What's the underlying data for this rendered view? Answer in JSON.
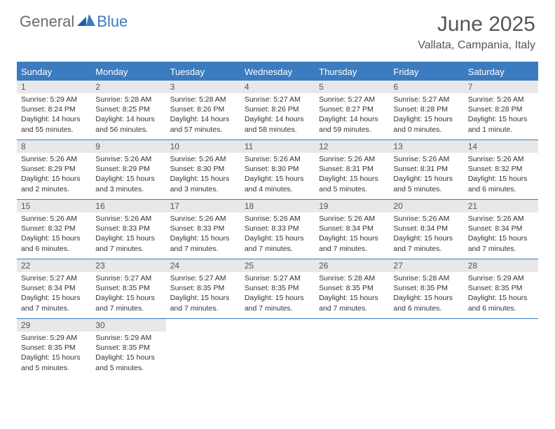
{
  "colors": {
    "accent": "#3b7bbf",
    "header_text": "#ffffff",
    "daynum_bg": "#e8e8e8",
    "text": "#333333",
    "muted": "#555555",
    "background": "#ffffff",
    "logo_gray": "#6b6b6b"
  },
  "logo": {
    "part1": "General",
    "part2": "Blue"
  },
  "title": "June 2025",
  "location": "Vallata, Campania, Italy",
  "day_headers": [
    "Sunday",
    "Monday",
    "Tuesday",
    "Wednesday",
    "Thursday",
    "Friday",
    "Saturday"
  ],
  "weeks": [
    [
      {
        "n": "1",
        "sr": "Sunrise: 5:29 AM",
        "ss": "Sunset: 8:24 PM",
        "dl": "Daylight: 14 hours and 55 minutes."
      },
      {
        "n": "2",
        "sr": "Sunrise: 5:28 AM",
        "ss": "Sunset: 8:25 PM",
        "dl": "Daylight: 14 hours and 56 minutes."
      },
      {
        "n": "3",
        "sr": "Sunrise: 5:28 AM",
        "ss": "Sunset: 8:26 PM",
        "dl": "Daylight: 14 hours and 57 minutes."
      },
      {
        "n": "4",
        "sr": "Sunrise: 5:27 AM",
        "ss": "Sunset: 8:26 PM",
        "dl": "Daylight: 14 hours and 58 minutes."
      },
      {
        "n": "5",
        "sr": "Sunrise: 5:27 AM",
        "ss": "Sunset: 8:27 PM",
        "dl": "Daylight: 14 hours and 59 minutes."
      },
      {
        "n": "6",
        "sr": "Sunrise: 5:27 AM",
        "ss": "Sunset: 8:28 PM",
        "dl": "Daylight: 15 hours and 0 minutes."
      },
      {
        "n": "7",
        "sr": "Sunrise: 5:26 AM",
        "ss": "Sunset: 8:28 PM",
        "dl": "Daylight: 15 hours and 1 minute."
      }
    ],
    [
      {
        "n": "8",
        "sr": "Sunrise: 5:26 AM",
        "ss": "Sunset: 8:29 PM",
        "dl": "Daylight: 15 hours and 2 minutes."
      },
      {
        "n": "9",
        "sr": "Sunrise: 5:26 AM",
        "ss": "Sunset: 8:29 PM",
        "dl": "Daylight: 15 hours and 3 minutes."
      },
      {
        "n": "10",
        "sr": "Sunrise: 5:26 AM",
        "ss": "Sunset: 8:30 PM",
        "dl": "Daylight: 15 hours and 3 minutes."
      },
      {
        "n": "11",
        "sr": "Sunrise: 5:26 AM",
        "ss": "Sunset: 8:30 PM",
        "dl": "Daylight: 15 hours and 4 minutes."
      },
      {
        "n": "12",
        "sr": "Sunrise: 5:26 AM",
        "ss": "Sunset: 8:31 PM",
        "dl": "Daylight: 15 hours and 5 minutes."
      },
      {
        "n": "13",
        "sr": "Sunrise: 5:26 AM",
        "ss": "Sunset: 8:31 PM",
        "dl": "Daylight: 15 hours and 5 minutes."
      },
      {
        "n": "14",
        "sr": "Sunrise: 5:26 AM",
        "ss": "Sunset: 8:32 PM",
        "dl": "Daylight: 15 hours and 6 minutes."
      }
    ],
    [
      {
        "n": "15",
        "sr": "Sunrise: 5:26 AM",
        "ss": "Sunset: 8:32 PM",
        "dl": "Daylight: 15 hours and 6 minutes."
      },
      {
        "n": "16",
        "sr": "Sunrise: 5:26 AM",
        "ss": "Sunset: 8:33 PM",
        "dl": "Daylight: 15 hours and 7 minutes."
      },
      {
        "n": "17",
        "sr": "Sunrise: 5:26 AM",
        "ss": "Sunset: 8:33 PM",
        "dl": "Daylight: 15 hours and 7 minutes."
      },
      {
        "n": "18",
        "sr": "Sunrise: 5:26 AM",
        "ss": "Sunset: 8:33 PM",
        "dl": "Daylight: 15 hours and 7 minutes."
      },
      {
        "n": "19",
        "sr": "Sunrise: 5:26 AM",
        "ss": "Sunset: 8:34 PM",
        "dl": "Daylight: 15 hours and 7 minutes."
      },
      {
        "n": "20",
        "sr": "Sunrise: 5:26 AM",
        "ss": "Sunset: 8:34 PM",
        "dl": "Daylight: 15 hours and 7 minutes."
      },
      {
        "n": "21",
        "sr": "Sunrise: 5:26 AM",
        "ss": "Sunset: 8:34 PM",
        "dl": "Daylight: 15 hours and 7 minutes."
      }
    ],
    [
      {
        "n": "22",
        "sr": "Sunrise: 5:27 AM",
        "ss": "Sunset: 8:34 PM",
        "dl": "Daylight: 15 hours and 7 minutes."
      },
      {
        "n": "23",
        "sr": "Sunrise: 5:27 AM",
        "ss": "Sunset: 8:35 PM",
        "dl": "Daylight: 15 hours and 7 minutes."
      },
      {
        "n": "24",
        "sr": "Sunrise: 5:27 AM",
        "ss": "Sunset: 8:35 PM",
        "dl": "Daylight: 15 hours and 7 minutes."
      },
      {
        "n": "25",
        "sr": "Sunrise: 5:27 AM",
        "ss": "Sunset: 8:35 PM",
        "dl": "Daylight: 15 hours and 7 minutes."
      },
      {
        "n": "26",
        "sr": "Sunrise: 5:28 AM",
        "ss": "Sunset: 8:35 PM",
        "dl": "Daylight: 15 hours and 7 minutes."
      },
      {
        "n": "27",
        "sr": "Sunrise: 5:28 AM",
        "ss": "Sunset: 8:35 PM",
        "dl": "Daylight: 15 hours and 6 minutes."
      },
      {
        "n": "28",
        "sr": "Sunrise: 5:29 AM",
        "ss": "Sunset: 8:35 PM",
        "dl": "Daylight: 15 hours and 6 minutes."
      }
    ],
    [
      {
        "n": "29",
        "sr": "Sunrise: 5:29 AM",
        "ss": "Sunset: 8:35 PM",
        "dl": "Daylight: 15 hours and 5 minutes."
      },
      {
        "n": "30",
        "sr": "Sunrise: 5:29 AM",
        "ss": "Sunset: 8:35 PM",
        "dl": "Daylight: 15 hours and 5 minutes."
      },
      null,
      null,
      null,
      null,
      null
    ]
  ]
}
